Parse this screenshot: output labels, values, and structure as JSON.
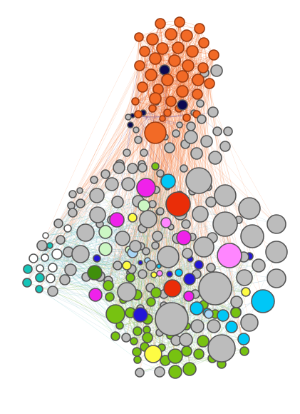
{
  "graph": {
    "background": "#ffffff",
    "community_colors": {
      "orange": "#f26a26",
      "navy": "#0b0a52",
      "gray": "#bcbcbc",
      "green": "#77c211",
      "light_green": "#ccf7c4",
      "magenta": "#ef22ea",
      "light_magenta": "#ff86ff",
      "red": "#ea2d08",
      "cyan": "#00c7f6",
      "light_blue": "#a8d6f5",
      "blue": "#2416d6",
      "yellow": "#fdfc43",
      "teal": "#16c4b8",
      "dark_green": "#3f8f0b",
      "white": "#ffffff"
    },
    "edge_colors": {
      "orange_cluster": "#f26a26",
      "mixed": "#8ab6c8",
      "green_cluster": "#8bc34a",
      "navy_links": "#3a33a8"
    }
  }
}
